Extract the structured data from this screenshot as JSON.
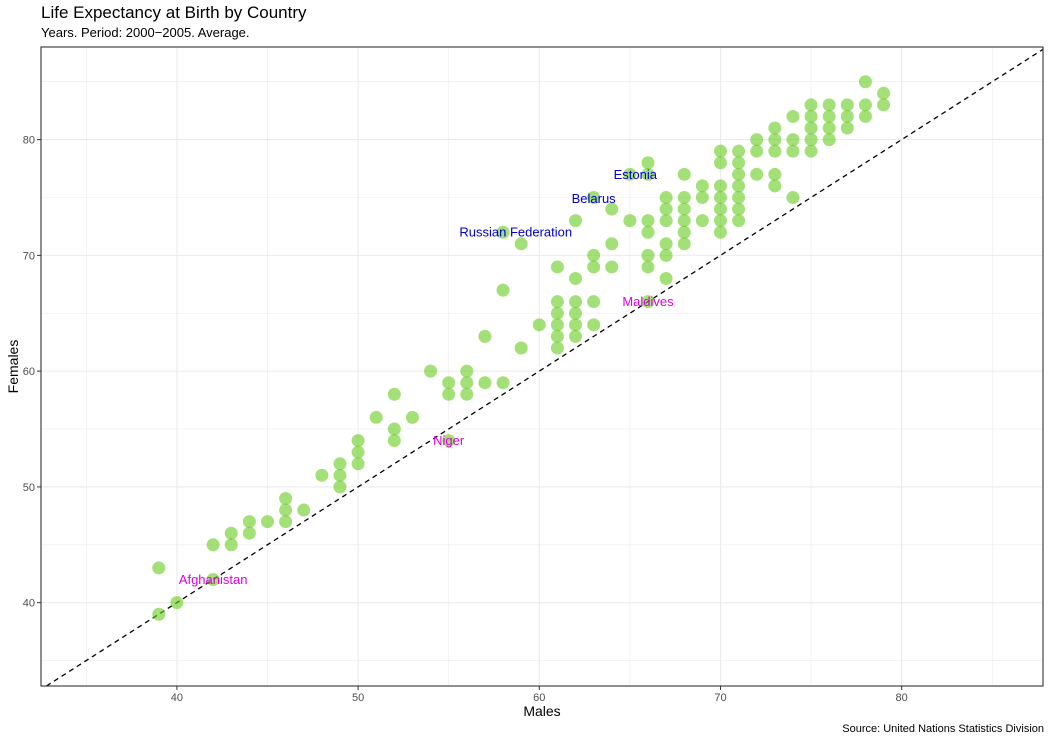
{
  "colors": {
    "point_light": "#a4e070",
    "point_dark": "#66cc1e",
    "label_blue": "#0000cc",
    "label_magenta": "#dd00dd",
    "grid": "#ebebeb",
    "panel_border": "#333333"
  },
  "chart_data": {
    "type": "scatter",
    "title": "Life Expectancy at Birth by Country",
    "subtitle": "Years. Period: 2000−2005. Average.",
    "caption": "Source: United Nations Statistics Division",
    "xlabel": "Males",
    "ylabel": "Females",
    "xlim": [
      32.5,
      87.8
    ],
    "ylim": [
      32.8,
      88
    ],
    "x_ticks": [
      40,
      50,
      60,
      70,
      80
    ],
    "y_ticks": [
      40,
      50,
      60,
      70,
      80
    ],
    "x_tick_labels": [
      "40",
      "50",
      "60",
      "70",
      "80"
    ],
    "y_tick_labels": [
      "40",
      "50",
      "60",
      "70",
      "80"
    ],
    "grid": true,
    "reference_line": {
      "style": "dashed",
      "slope": 1,
      "intercept": 0
    },
    "points": [
      [
        39,
        43
      ],
      [
        39,
        39
      ],
      [
        40,
        40
      ],
      [
        42,
        45
      ],
      [
        42,
        42
      ],
      [
        43,
        46
      ],
      [
        43,
        45
      ],
      [
        44,
        47
      ],
      [
        44,
        46
      ],
      [
        45,
        47
      ],
      [
        46,
        49
      ],
      [
        46,
        48
      ],
      [
        46,
        47
      ],
      [
        47,
        48
      ],
      [
        48,
        51
      ],
      [
        49,
        52
      ],
      [
        49,
        51
      ],
      [
        49,
        50
      ],
      [
        50,
        54
      ],
      [
        50,
        53
      ],
      [
        50,
        52
      ],
      [
        51,
        56
      ],
      [
        52,
        58
      ],
      [
        52,
        55
      ],
      [
        52,
        54
      ],
      [
        53,
        56
      ],
      [
        54,
        60
      ],
      [
        55,
        59
      ],
      [
        55,
        58
      ],
      [
        55,
        54
      ],
      [
        56,
        60
      ],
      [
        56,
        59
      ],
      [
        56,
        58
      ],
      [
        57,
        63
      ],
      [
        57,
        59
      ],
      [
        58,
        67
      ],
      [
        58,
        59
      ],
      [
        58,
        72
      ],
      [
        59,
        71
      ],
      [
        59,
        62
      ],
      [
        60,
        64
      ],
      [
        61,
        69
      ],
      [
        61,
        66
      ],
      [
        61,
        65
      ],
      [
        61,
        64
      ],
      [
        61,
        63
      ],
      [
        61,
        62
      ],
      [
        62,
        73
      ],
      [
        62,
        68
      ],
      [
        62,
        66
      ],
      [
        62,
        65
      ],
      [
        62,
        64
      ],
      [
        62,
        63
      ],
      [
        63,
        75
      ],
      [
        63,
        70
      ],
      [
        63,
        69
      ],
      [
        63,
        66
      ],
      [
        63,
        64
      ],
      [
        64,
        74
      ],
      [
        64,
        71
      ],
      [
        64,
        69
      ],
      [
        65,
        77
      ],
      [
        65,
        73
      ],
      [
        66,
        78
      ],
      [
        66,
        77
      ],
      [
        66,
        73
      ],
      [
        66,
        72
      ],
      [
        66,
        70
      ],
      [
        66,
        69
      ],
      [
        66,
        66
      ],
      [
        67,
        75
      ],
      [
        67,
        74
      ],
      [
        67,
        73
      ],
      [
        67,
        71
      ],
      [
        67,
        70
      ],
      [
        67,
        68
      ],
      [
        68,
        77
      ],
      [
        68,
        75
      ],
      [
        68,
        74
      ],
      [
        68,
        73
      ],
      [
        68,
        72
      ],
      [
        68,
        71
      ],
      [
        69,
        76
      ],
      [
        69,
        75
      ],
      [
        69,
        73
      ],
      [
        70,
        79
      ],
      [
        70,
        78
      ],
      [
        70,
        76
      ],
      [
        70,
        75
      ],
      [
        70,
        74
      ],
      [
        70,
        73
      ],
      [
        70,
        72
      ],
      [
        71,
        79
      ],
      [
        71,
        78
      ],
      [
        71,
        77
      ],
      [
        71,
        76
      ],
      [
        71,
        75
      ],
      [
        71,
        74
      ],
      [
        71,
        73
      ],
      [
        72,
        80
      ],
      [
        72,
        79
      ],
      [
        72,
        77
      ],
      [
        73,
        81
      ],
      [
        73,
        80
      ],
      [
        73,
        79
      ],
      [
        73,
        77
      ],
      [
        73,
        76
      ],
      [
        74,
        82
      ],
      [
        74,
        80
      ],
      [
        74,
        79
      ],
      [
        74,
        75
      ],
      [
        75,
        83
      ],
      [
        75,
        82
      ],
      [
        75,
        81
      ],
      [
        75,
        80
      ],
      [
        75,
        79
      ],
      [
        76,
        83
      ],
      [
        76,
        82
      ],
      [
        76,
        81
      ],
      [
        76,
        80
      ],
      [
        77,
        83
      ],
      [
        77,
        82
      ],
      [
        77,
        81
      ],
      [
        78,
        85
      ],
      [
        78,
        83
      ],
      [
        78,
        82
      ],
      [
        79,
        84
      ],
      [
        79,
        83
      ]
    ],
    "annotations": [
      {
        "label": "Estonia",
        "x": 65.3,
        "y": 77,
        "color": "blue"
      },
      {
        "label": "Belarus",
        "x": 63.0,
        "y": 74.9,
        "color": "blue"
      },
      {
        "label": "Russian Federation",
        "x": 58.7,
        "y": 72.0,
        "color": "blue"
      },
      {
        "label": "Maldives",
        "x": 66.0,
        "y": 66.0,
        "color": "magenta"
      },
      {
        "label": "Niger",
        "x": 55.0,
        "y": 54.0,
        "color": "magenta"
      },
      {
        "label": "Afghanistan",
        "x": 42.0,
        "y": 42.0,
        "color": "magenta"
      }
    ]
  }
}
